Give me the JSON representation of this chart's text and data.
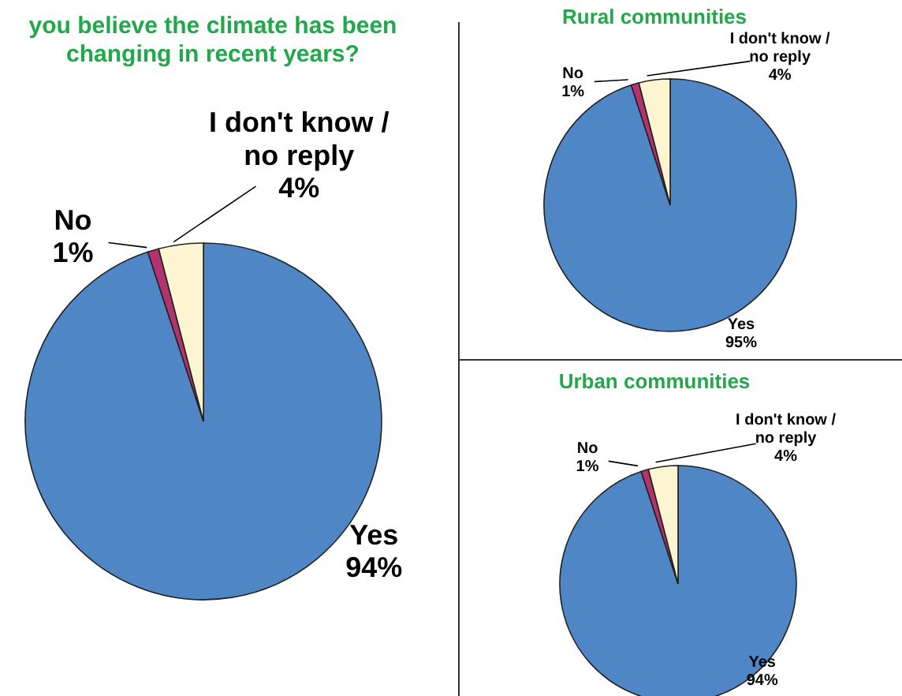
{
  "chart_data": [
    {
      "type": "pie",
      "title": "you believe the climate has been changing in recent years?",
      "categories": [
        "Yes",
        "No",
        "I don't know / no reply"
      ],
      "values": [
        94,
        1,
        4
      ],
      "value_labels": [
        "94%",
        "1%",
        "4%"
      ],
      "colors": [
        "#4f86c6",
        "#b3336e",
        "#fdf5d2"
      ]
    },
    {
      "type": "pie",
      "title": "Rural communities",
      "categories": [
        "Yes",
        "No",
        "I don't know / no reply"
      ],
      "values": [
        95,
        1,
        4
      ],
      "value_labels": [
        "95%",
        "1%",
        "4%"
      ],
      "colors": [
        "#4f86c6",
        "#b3336e",
        "#fdf5d2"
      ]
    },
    {
      "type": "pie",
      "title": "Urban communities",
      "categories": [
        "Yes",
        "No",
        "I don't know / no reply"
      ],
      "values": [
        94,
        1,
        4
      ],
      "value_labels": [
        "94%",
        "1%",
        "4%"
      ],
      "colors": [
        "#4f86c6",
        "#b3336e",
        "#fdf5d2"
      ]
    }
  ]
}
